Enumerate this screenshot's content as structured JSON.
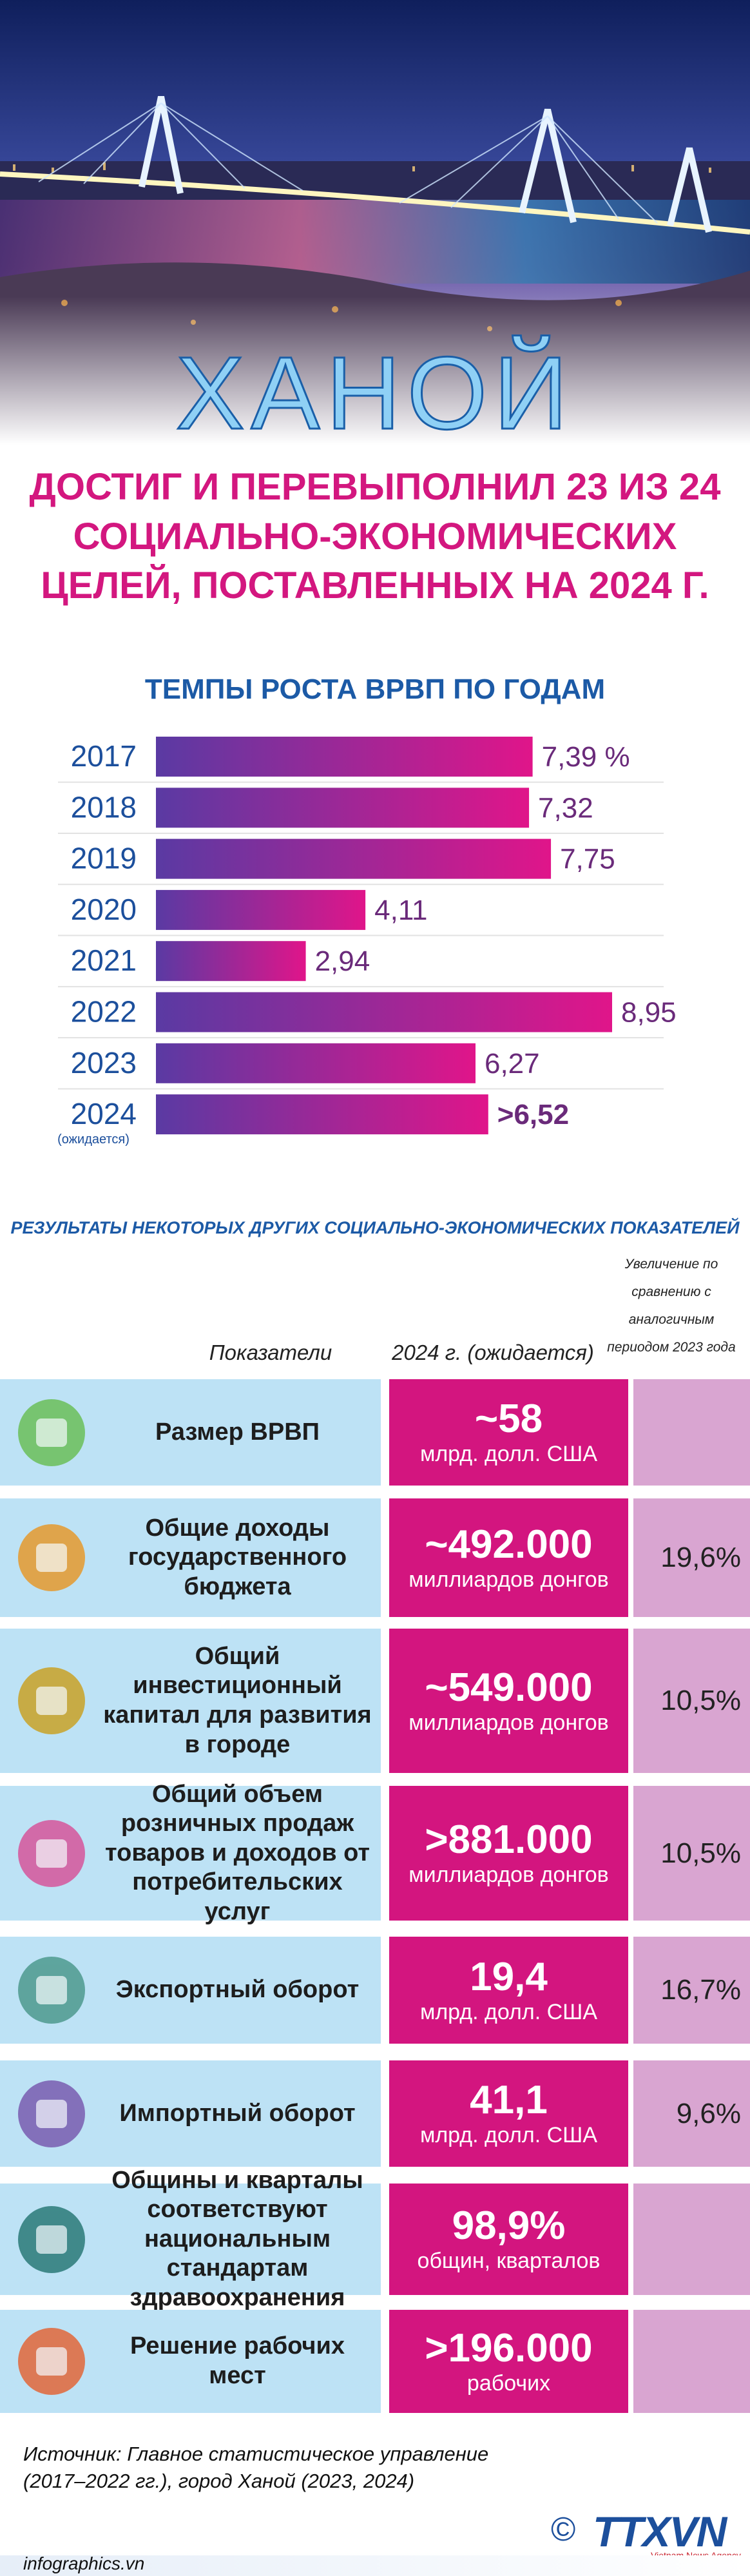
{
  "header": {
    "city": "ХАНОЙ",
    "headline": [
      "ДОСТИГ И ПЕРЕВЫПОЛНИЛ 23 ИЗ 24",
      "СОЦИАЛЬНО-ЭКОНОМИЧЕСКИХ",
      "ЦЕЛЕЙ, ПОСТАВЛЕННЫХ НА 2024 Г."
    ]
  },
  "chart_data": {
    "type": "bar",
    "orientation": "horizontal",
    "title": "ТЕМПЫ РОСТА ВРВП ПО ГОДАМ",
    "categories": [
      "2017",
      "2018",
      "2019",
      "2020",
      "2021",
      "2022",
      "2023",
      "2024"
    ],
    "category_note": "(ожидается)",
    "values": [
      7.39,
      7.32,
      7.75,
      4.11,
      2.94,
      8.95,
      6.27,
      6.52
    ],
    "value_labels": [
      "7,39 %",
      "7,32",
      "7,75",
      "4,11",
      "2,94",
      "8,95",
      "6,27",
      ">6,52"
    ],
    "colors": [
      "#5a3aa3",
      "#e0158a"
    ]
  },
  "table": {
    "title": "РЕЗУЛЬТАТЫ НЕКОТОРЫХ ДРУГИХ СОЦИАЛЬНО-ЭКОНОМИЧЕСКИХ ПОКАЗАТЕЛЕЙ",
    "columns": [
      "Показатели",
      "2024 г. (ожидается)"
    ],
    "change_note": [
      "Увеличение по",
      "сравнению с",
      "аналогичным",
      "периодом 2023 года"
    ],
    "rows": [
      {
        "label": "Размер ВРВП",
        "value": "~58",
        "unit": "млрд. долл. США"
      },
      {
        "label": "Общие доходы государственного бюджета",
        "value": "~492.000",
        "unit": "миллиардов донгов",
        "change": "19,6%"
      },
      {
        "label": "Общий инвестиционный капитал для развития в городе",
        "value": "~549.000",
        "unit": "миллиардов донгов",
        "change": "10,5%"
      },
      {
        "label": "Общий объем розничных продаж товаров и доходов от потребительских услуг",
        "value": ">881.000",
        "unit": "миллиардов донгов",
        "change": "10,5%"
      },
      {
        "label": "Экспортный оборот",
        "value": "19,4",
        "unit": "млрд. долл. США",
        "change": "16,7%"
      },
      {
        "label": "Импортный оборот",
        "value": "41,1",
        "unit": "млрд. долл. США",
        "change": "9,6%"
      },
      {
        "label": "Общины и кварталы соответствуют национальным стандартам здравоохранения",
        "value": "98,9%",
        "unit": "общин, кварталов"
      },
      {
        "label": "Решение рабочих мест",
        "value": ">196.000",
        "unit": "рабочих"
      }
    ]
  },
  "footer": {
    "source": [
      "Источник: Главное статистическое управление",
      "(2017–2022 гг.), город Ханой (2023, 2024)"
    ],
    "copyright": "©",
    "logo": "TTXVN",
    "logo_sub": "Vietnam News Agency",
    "site": "infographics.vn"
  }
}
